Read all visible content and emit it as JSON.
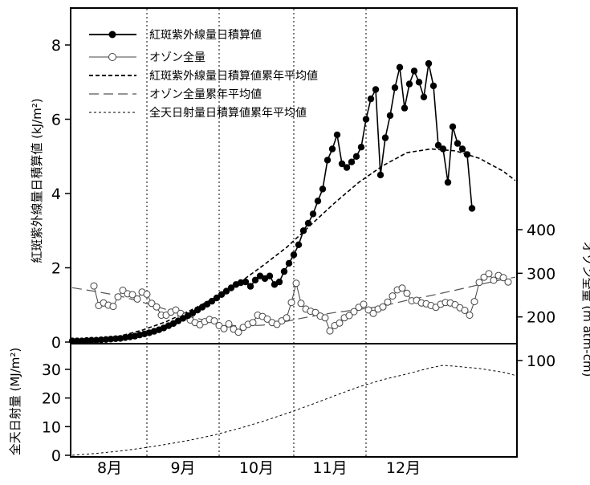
{
  "chart_data": [
    {
      "type": "line",
      "panel": "upper",
      "x_categories": [
        "8月",
        "9月",
        "10月",
        "11月",
        "12月"
      ],
      "x_domain_days": [
        1,
        154
      ],
      "ylabel": "紅斑紫外線量日積算値 (kJ/m²)",
      "ylim": [
        0,
        9
      ],
      "yticks": [
        0,
        2,
        4,
        6,
        8
      ],
      "y2label": "オゾン全量 (m atm-cm)",
      "y2lim": [
        50,
        450
      ],
      "y2ticks": [
        100,
        200,
        300,
        400
      ],
      "legend": [
        "紅斑紫外線量日積算値",
        "オゾン全量",
        "紅斑紫外線量日積算値累年平均値",
        "オゾン全量累年平均値",
        "全天日射量日積算値累年平均値"
      ],
      "series": [
        {
          "name": "紅斑紫外線量日積算値",
          "axis": "left",
          "style": "filled-markers",
          "points": [
            [
              1,
              0.03
            ],
            [
              3,
              0.03
            ],
            [
              5,
              0.03
            ],
            [
              7,
              0.04
            ],
            [
              9,
              0.05
            ],
            [
              11,
              0.05
            ],
            [
              13,
              0.06
            ],
            [
              15,
              0.07
            ],
            [
              17,
              0.08
            ],
            [
              19,
              0.09
            ],
            [
              21,
              0.1
            ],
            [
              23,
              0.12
            ],
            [
              25,
              0.14
            ],
            [
              27,
              0.16
            ],
            [
              29,
              0.19
            ],
            [
              31,
              0.22
            ],
            [
              33,
              0.25
            ],
            [
              35,
              0.29
            ],
            [
              37,
              0.33
            ],
            [
              39,
              0.38
            ],
            [
              41,
              0.44
            ],
            [
              43,
              0.5
            ],
            [
              45,
              0.57
            ],
            [
              47,
              0.64
            ],
            [
              49,
              0.71
            ],
            [
              51,
              0.78
            ],
            [
              53,
              0.86
            ],
            [
              55,
              0.94
            ],
            [
              57,
              1.02
            ],
            [
              59,
              1.1
            ],
            [
              61,
              1.19
            ],
            [
              63,
              1.28
            ],
            [
              65,
              1.37
            ],
            [
              67,
              1.46
            ],
            [
              69,
              1.55
            ],
            [
              71,
              1.6
            ],
            [
              73,
              1.62
            ],
            [
              75,
              1.5
            ],
            [
              77,
              1.67
            ],
            [
              79,
              1.78
            ],
            [
              81,
              1.71
            ],
            [
              83,
              1.78
            ],
            [
              85,
              1.55
            ],
            [
              87,
              1.62
            ],
            [
              89,
              1.9
            ],
            [
              91,
              2.12
            ],
            [
              93,
              2.35
            ],
            [
              95,
              2.62
            ],
            [
              97,
              3.0
            ],
            [
              99,
              3.2
            ],
            [
              101,
              3.45
            ],
            [
              103,
              3.8
            ],
            [
              105,
              4.12
            ],
            [
              107,
              4.9
            ],
            [
              109,
              5.2
            ],
            [
              111,
              5.58
            ],
            [
              113,
              4.8
            ],
            [
              115,
              4.7
            ],
            [
              117,
              4.85
            ],
            [
              119,
              5.0
            ],
            [
              121,
              5.25
            ],
            [
              123,
              6.0
            ],
            [
              125,
              6.55
            ],
            [
              127,
              6.8
            ],
            [
              129,
              4.5
            ],
            [
              131,
              5.5
            ],
            [
              133,
              6.1
            ],
            [
              135,
              6.85
            ],
            [
              137,
              7.4
            ],
            [
              139,
              6.3
            ],
            [
              141,
              6.95
            ],
            [
              143,
              7.3
            ],
            [
              145,
              7.0
            ],
            [
              147,
              6.6
            ],
            [
              149,
              7.5
            ],
            [
              151,
              6.9
            ],
            [
              153,
              5.3
            ],
            [
              155,
              5.2
            ],
            [
              157,
              4.3
            ],
            [
              159,
              5.8
            ],
            [
              161,
              5.35
            ],
            [
              163,
              5.2
            ],
            [
              165,
              5.05
            ],
            [
              167,
              3.6
            ]
          ]
        },
        {
          "name": "オゾン全量",
          "axis": "right",
          "style": "open-markers",
          "points": [
            [
              10,
              271
            ],
            [
              12,
              226
            ],
            [
              14,
              232
            ],
            [
              16,
              227
            ],
            [
              18,
              224
            ],
            [
              20,
              246
            ],
            [
              22,
              261
            ],
            [
              24,
              253
            ],
            [
              26,
              251
            ],
            [
              28,
              241
            ],
            [
              30,
              257
            ],
            [
              32,
              252
            ],
            [
              34,
              231
            ],
            [
              36,
              223
            ],
            [
              38,
              204
            ],
            [
              40,
              204
            ],
            [
              42,
              211
            ],
            [
              44,
              216
            ],
            [
              46,
              208
            ],
            [
              48,
              202
            ],
            [
              50,
              193
            ],
            [
              52,
              187
            ],
            [
              54,
              182
            ],
            [
              56,
              189
            ],
            [
              58,
              194
            ],
            [
              60,
              191
            ],
            [
              62,
              180
            ],
            [
              64,
              173
            ],
            [
              66,
              184
            ],
            [
              68,
              172
            ],
            [
              70,
              165
            ],
            [
              72,
              176
            ],
            [
              74,
              183
            ],
            [
              76,
              187
            ],
            [
              78,
              204
            ],
            [
              80,
              201
            ],
            [
              82,
              195
            ],
            [
              84,
              187
            ],
            [
              86,
              183
            ],
            [
              88,
              191
            ],
            [
              90,
              198
            ],
            [
              92,
              233
            ],
            [
              94,
              277
            ],
            [
              96,
              231
            ],
            [
              98,
              218
            ],
            [
              100,
              213
            ],
            [
              102,
              210
            ],
            [
              104,
              202
            ],
            [
              106,
              198
            ],
            [
              108,
              168
            ],
            [
              110,
              180
            ],
            [
              112,
              186
            ],
            [
              114,
              198
            ],
            [
              116,
              203
            ],
            [
              118,
              212
            ],
            [
              120,
              222
            ],
            [
              122,
              229
            ],
            [
              124,
              216
            ],
            [
              126,
              208
            ],
            [
              128,
              218
            ],
            [
              130,
              223
            ],
            [
              132,
              234
            ],
            [
              134,
              248
            ],
            [
              136,
              262
            ],
            [
              138,
              266
            ],
            [
              140,
              254
            ],
            [
              142,
              237
            ],
            [
              144,
              238
            ],
            [
              146,
              232
            ],
            [
              148,
              230
            ],
            [
              150,
              226
            ],
            [
              152,
              222
            ],
            [
              154,
              229
            ],
            [
              156,
              233
            ],
            [
              158,
              232
            ],
            [
              160,
              228
            ],
            [
              162,
              221
            ],
            [
              164,
              215
            ],
            [
              166,
              204
            ],
            [
              168,
              235
            ],
            [
              170,
              279
            ],
            [
              172,
              291
            ],
            [
              174,
              299
            ],
            [
              176,
              284
            ],
            [
              178,
              295
            ],
            [
              180,
              290
            ],
            [
              182,
              280
            ]
          ]
        },
        {
          "name": "紅斑紫外線量日積算値累年平均値",
          "axis": "left",
          "style": "dash-medium",
          "points": [
            [
              1,
              0.03
            ],
            [
              10,
              0.06
            ],
            [
              20,
              0.15
            ],
            [
              30,
              0.32
            ],
            [
              40,
              0.55
            ],
            [
              50,
              0.85
            ],
            [
              60,
              1.18
            ],
            [
              70,
              1.58
            ],
            [
              80,
              2.05
            ],
            [
              90,
              2.55
            ],
            [
              100,
              3.15
            ],
            [
              110,
              3.75
            ],
            [
              120,
              4.3
            ],
            [
              130,
              4.75
            ],
            [
              140,
              5.1
            ],
            [
              150,
              5.2
            ],
            [
              160,
              5.15
            ],
            [
              170,
              4.95
            ],
            [
              180,
              4.6
            ],
            [
              185,
              4.35
            ]
          ]
        },
        {
          "name": "オゾン全量累年平均値",
          "axis": "right",
          "style": "dash-long",
          "points": [
            [
              1,
              267
            ],
            [
              10,
              259
            ],
            [
              20,
              249
            ],
            [
              30,
              234
            ],
            [
              40,
              217
            ],
            [
              50,
              201
            ],
            [
              60,
              186
            ],
            [
              70,
              179
            ],
            [
              80,
              181
            ],
            [
              90,
              190
            ],
            [
              100,
              201
            ],
            [
              110,
              210
            ],
            [
              120,
              217
            ],
            [
              130,
              225
            ],
            [
              140,
              238
            ],
            [
              150,
              249
            ],
            [
              160,
              261
            ],
            [
              170,
              274
            ],
            [
              180,
              286
            ],
            [
              185,
              291
            ]
          ]
        }
      ]
    },
    {
      "type": "line",
      "panel": "lower",
      "ylabel": "全天日射量 (MJ/m²)",
      "ylim": [
        0,
        33
      ],
      "yticks": [
        0,
        10,
        20,
        30
      ],
      "series": [
        {
          "name": "全天日射量日積算値累年平均値",
          "style": "dash-short",
          "points": [
            [
              1,
              0.0
            ],
            [
              10,
              0.6
            ],
            [
              20,
              1.4
            ],
            [
              30,
              2.5
            ],
            [
              40,
              3.8
            ],
            [
              50,
              5.3
            ],
            [
              60,
              7.1
            ],
            [
              70,
              9.3
            ],
            [
              80,
              11.8
            ],
            [
              90,
              14.6
            ],
            [
              100,
              17.6
            ],
            [
              110,
              20.8
            ],
            [
              120,
              23.9
            ],
            [
              130,
              26.4
            ],
            [
              140,
              28.4
            ],
            [
              150,
              30.6
            ],
            [
              155,
              31.4
            ],
            [
              160,
              31.1
            ],
            [
              170,
              30.3
            ],
            [
              180,
              29.0
            ],
            [
              185,
              27.9
            ]
          ]
        }
      ]
    }
  ]
}
